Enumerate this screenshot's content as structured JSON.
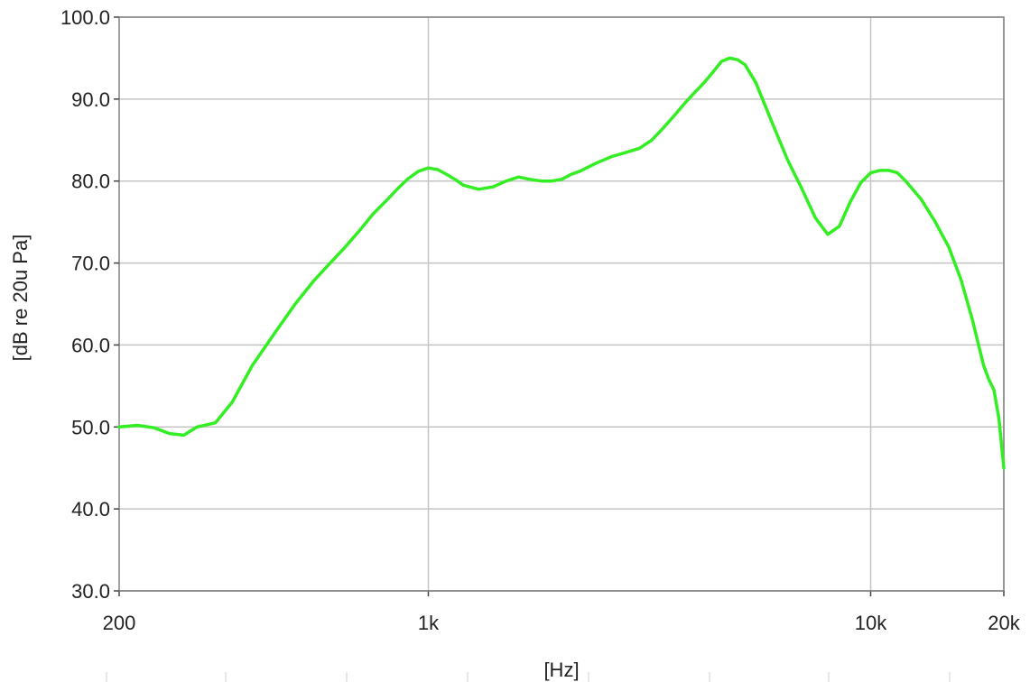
{
  "chart_data": {
    "type": "line",
    "title": "",
    "xlabel": "[Hz]",
    "ylabel": "[dB re 20u Pa]",
    "x_scale": "log",
    "xlim": [
      200,
      20000
    ],
    "ylim": [
      30,
      100
    ],
    "x_ticks": [
      {
        "value": 200,
        "label": "200"
      },
      {
        "value": 1000,
        "label": "1k"
      },
      {
        "value": 10000,
        "label": "10k"
      },
      {
        "value": 20000,
        "label": "20k"
      }
    ],
    "y_ticks": [
      {
        "value": 30,
        "label": "30.0"
      },
      {
        "value": 40,
        "label": "40.0"
      },
      {
        "value": 50,
        "label": "50.0"
      },
      {
        "value": 60,
        "label": "60.0"
      },
      {
        "value": 70,
        "label": "70.0"
      },
      {
        "value": 80,
        "label": "80.0"
      },
      {
        "value": 90,
        "label": "90.0"
      },
      {
        "value": 100,
        "label": "100.0"
      }
    ],
    "grid": true,
    "legend": "none",
    "series": [
      {
        "color": "#33ee22",
        "x": [
          200,
          220,
          240,
          260,
          280,
          300,
          330,
          360,
          400,
          450,
          500,
          550,
          600,
          650,
          700,
          750,
          800,
          850,
          900,
          950,
          1000,
          1050,
          1100,
          1150,
          1200,
          1300,
          1400,
          1500,
          1600,
          1700,
          1800,
          1900,
          2000,
          2100,
          2200,
          2400,
          2600,
          2800,
          3000,
          3200,
          3400,
          3600,
          3800,
          4000,
          4200,
          4400,
          4600,
          4800,
          5000,
          5200,
          5500,
          6000,
          6500,
          7000,
          7500,
          8000,
          8500,
          9000,
          9500,
          10000,
          10500,
          11000,
          11500,
          12000,
          13000,
          14000,
          15000,
          16000,
          17000,
          18000,
          18500,
          19000,
          19500,
          20000
        ],
        "values": [
          50.0,
          50.2,
          49.9,
          49.2,
          49.0,
          50.0,
          50.5,
          53.0,
          57.5,
          61.5,
          65.0,
          67.8,
          70.0,
          72.0,
          74.0,
          76.0,
          77.5,
          79.0,
          80.3,
          81.2,
          81.6,
          81.4,
          80.8,
          80.2,
          79.5,
          79.0,
          79.3,
          80.0,
          80.5,
          80.2,
          80.0,
          80.0,
          80.2,
          80.8,
          81.2,
          82.2,
          83.0,
          83.5,
          84.0,
          85.0,
          86.5,
          88.0,
          89.5,
          90.8,
          92.0,
          93.3,
          94.6,
          95.0,
          94.8,
          94.2,
          92.0,
          87.0,
          82.5,
          79.0,
          75.5,
          73.5,
          74.5,
          77.5,
          79.8,
          81.0,
          81.3,
          81.3,
          81.0,
          80.0,
          77.8,
          75.0,
          72.0,
          68.0,
          63.0,
          57.5,
          55.8,
          54.5,
          51.0,
          45.0
        ]
      }
    ]
  }
}
